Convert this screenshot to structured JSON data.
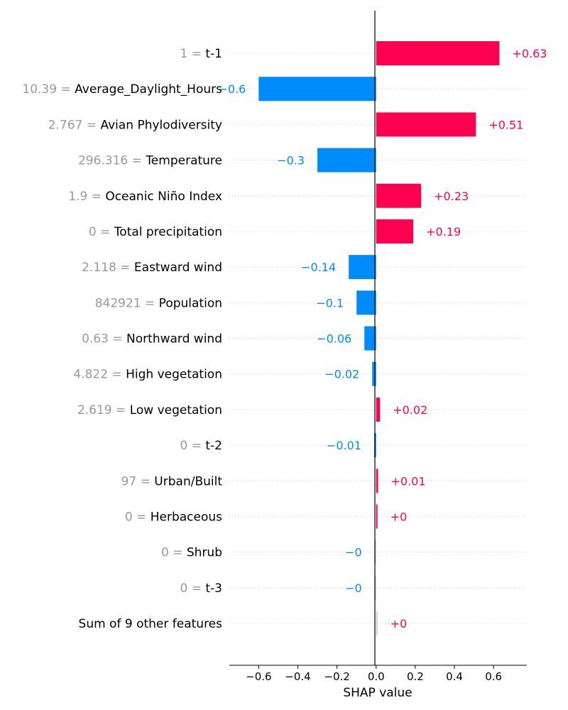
{
  "chart_data": {
    "type": "bar",
    "orientation": "horizontal",
    "xlabel": "SHAP value",
    "xlim": [
      -0.75,
      0.77
    ],
    "xticks": [
      {
        "value": -0.6,
        "label": "−0.6"
      },
      {
        "value": -0.4,
        "label": "−0.4"
      },
      {
        "value": -0.2,
        "label": "−0.2"
      },
      {
        "value": 0.0,
        "label": "0.0"
      },
      {
        "value": 0.2,
        "label": "0.2"
      },
      {
        "value": 0.4,
        "label": "0.4"
      },
      {
        "value": 0.6,
        "label": "0.6"
      }
    ],
    "grid": "dotted horizontal row lines",
    "colors": {
      "positive": "#ff0051",
      "negative": "#008bfb",
      "neutral": "#cccccc",
      "feature_value": "#999999"
    },
    "features": [
      {
        "value_text": "1",
        "name": "t-1",
        "shap": 0.63,
        "label": "+0.63"
      },
      {
        "value_text": "10.39",
        "name": "Average_Daylight_Hours",
        "shap": -0.6,
        "label": "−0.6"
      },
      {
        "value_text": "2.767",
        "name": "Avian Phylodiversity",
        "shap": 0.51,
        "label": "+0.51"
      },
      {
        "value_text": "296.316",
        "name": "Temperature",
        "shap": -0.3,
        "label": "−0.3"
      },
      {
        "value_text": "1.9",
        "name": "Oceanic Niño Index",
        "shap": 0.23,
        "label": "+0.23"
      },
      {
        "value_text": "0",
        "name": "Total precipitation",
        "shap": 0.19,
        "label": "+0.19"
      },
      {
        "value_text": "2.118",
        "name": "Eastward wind",
        "shap": -0.14,
        "label": "−0.14"
      },
      {
        "value_text": "842921",
        "name": "Population",
        "shap": -0.1,
        "label": "−0.1"
      },
      {
        "value_text": "0.63",
        "name": "Northward wind",
        "shap": -0.06,
        "label": "−0.06"
      },
      {
        "value_text": "4.822",
        "name": "High vegetation",
        "shap": -0.02,
        "label": "−0.02"
      },
      {
        "value_text": "2.619",
        "name": "Low vegetation",
        "shap": 0.02,
        "label": "+0.02"
      },
      {
        "value_text": "0",
        "name": "t-2",
        "shap": -0.01,
        "label": "−0.01"
      },
      {
        "value_text": "97",
        "name": "Urban/Built",
        "shap": 0.01,
        "label": "+0.01"
      },
      {
        "value_text": "0",
        "name": "Herbaceous",
        "shap": 0.003,
        "label": "+0"
      },
      {
        "value_text": "0",
        "name": "Shrub",
        "shap": -0.002,
        "label": "−0"
      },
      {
        "value_text": "0",
        "name": "t-3",
        "shap": -0.002,
        "label": "−0"
      },
      {
        "value_text": "",
        "name": "Sum of 9 other features",
        "shap": 0.003,
        "label": "+0"
      }
    ]
  }
}
